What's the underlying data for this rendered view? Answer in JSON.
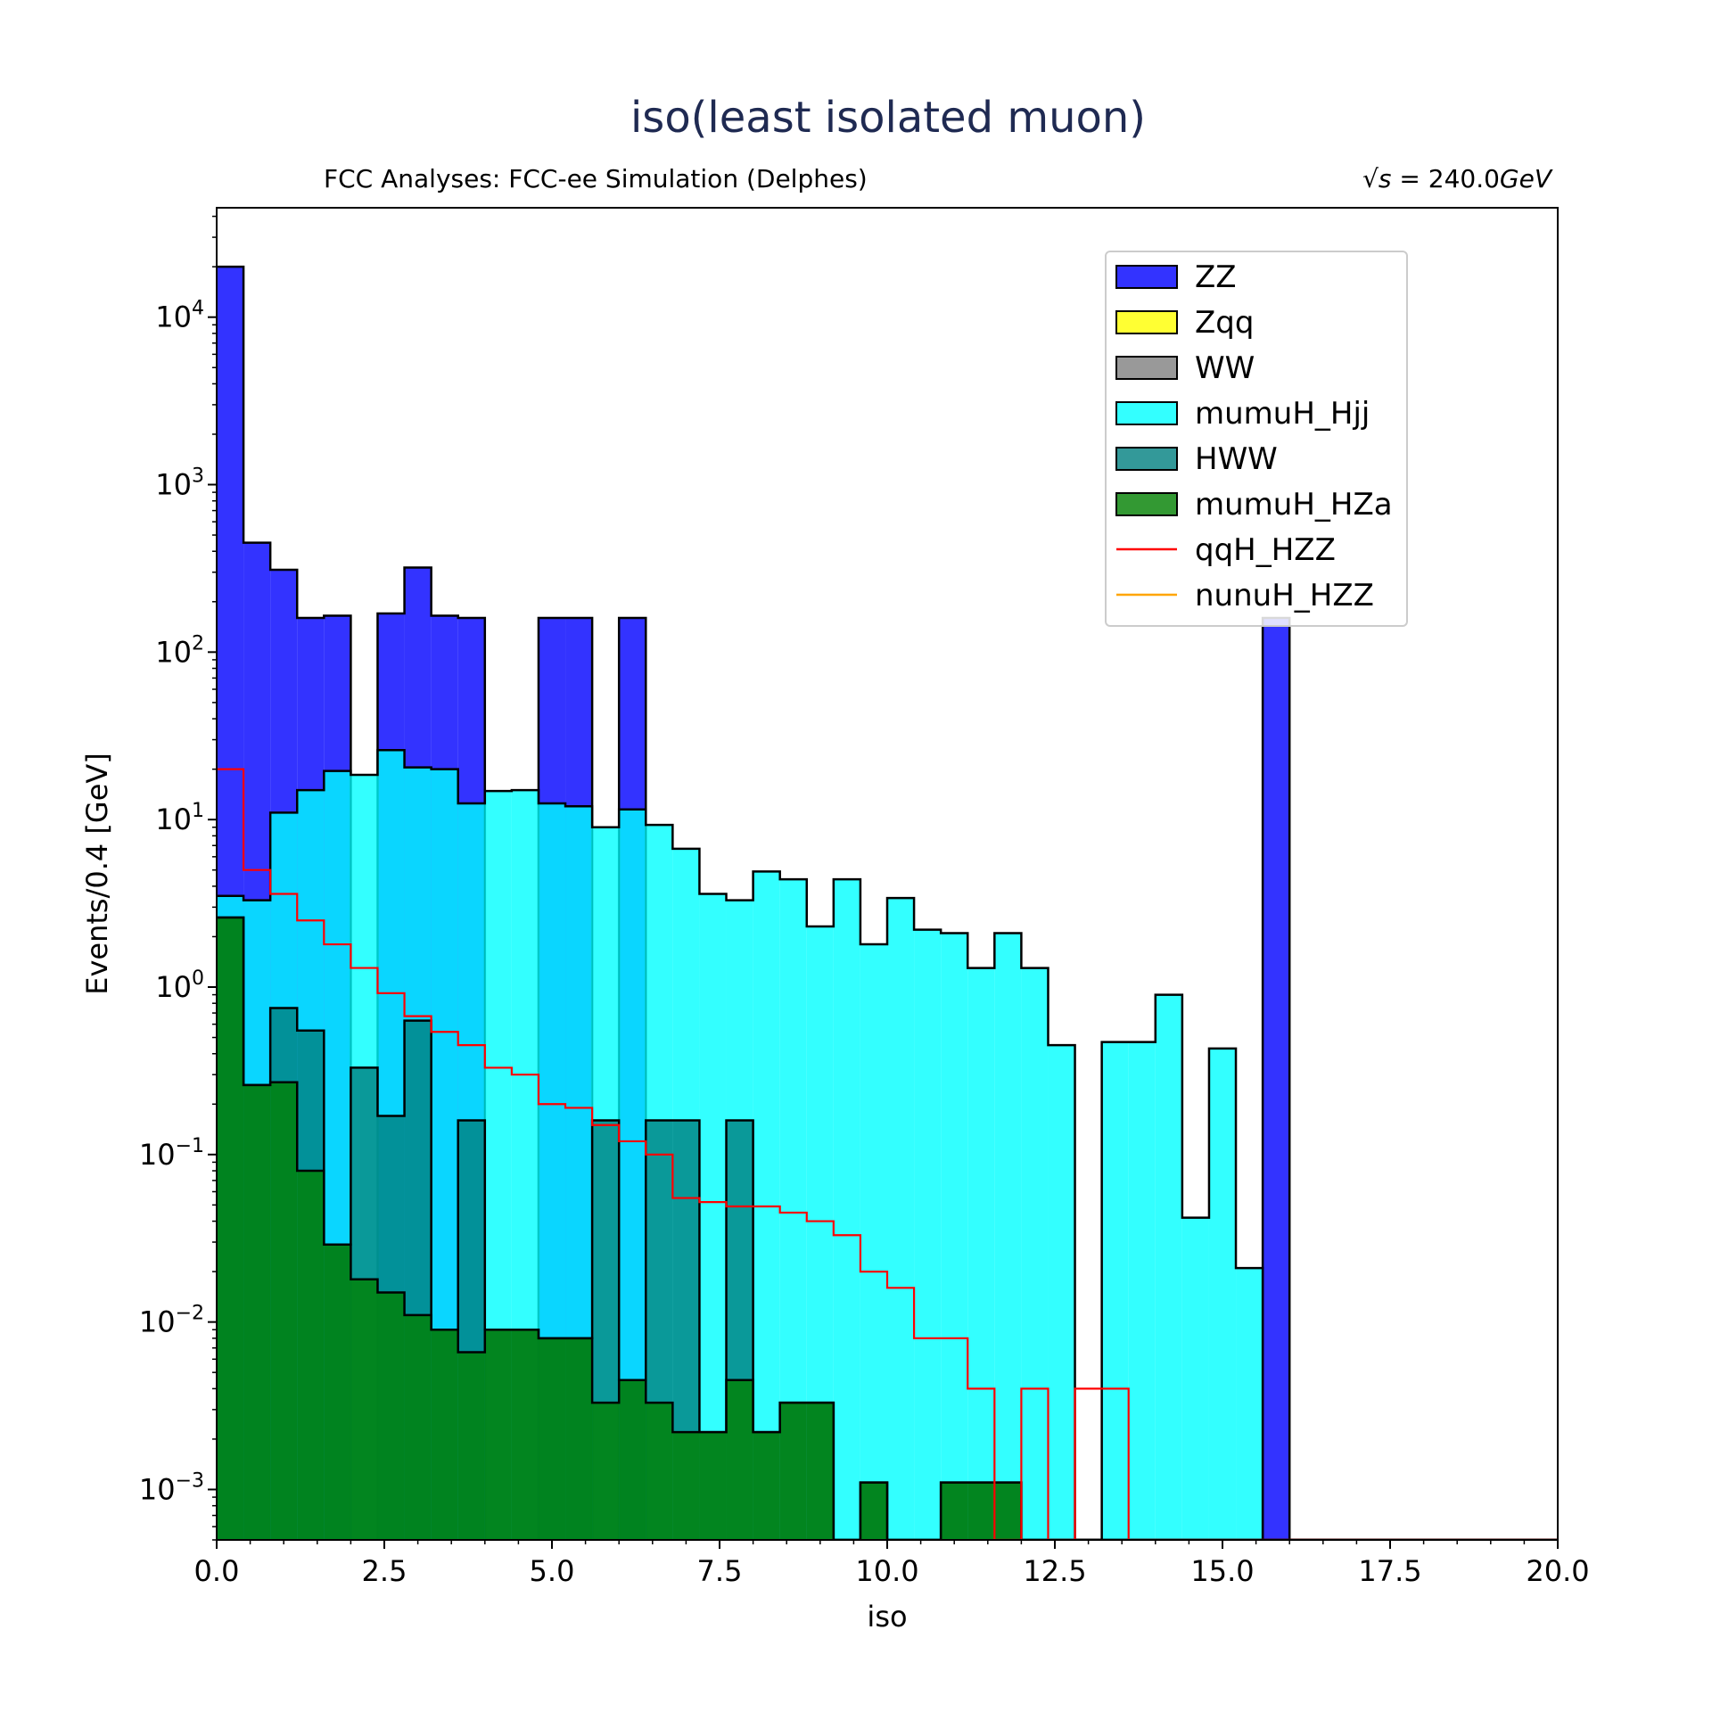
{
  "chart_data": {
    "type": "histogram-stacked",
    "title": "iso(least isolated muon)",
    "subtitle_left": "FCC Analyses: FCC-ee Simulation (Delphes)",
    "subtitle_right_prefix": "√s",
    "subtitle_right_value": " = 240.0",
    "subtitle_right_unit": "GeV",
    "xlabel": "iso",
    "ylabel": "Events/0.4 [GeV]",
    "xlim": [
      0,
      20
    ],
    "ylim": [
      0.0005,
      45000
    ],
    "yscale": "log",
    "bin_width": 0.4,
    "x_ticks": [
      0.0,
      2.5,
      5.0,
      7.5,
      10.0,
      12.5,
      15.0,
      17.5,
      20.0
    ],
    "x_tick_labels": [
      "0.0",
      "2.5",
      "5.0",
      "7.5",
      "10.0",
      "12.5",
      "15.0",
      "17.5",
      "20.0"
    ],
    "y_ticks": [
      {
        "base": "10",
        "exp": "−3",
        "value": 0.001
      },
      {
        "base": "10",
        "exp": "−2",
        "value": 0.01
      },
      {
        "base": "10",
        "exp": "−1",
        "value": 0.1
      },
      {
        "base": "10",
        "exp": "0",
        "value": 1
      },
      {
        "base": "10",
        "exp": "1",
        "value": 10
      },
      {
        "base": "10",
        "exp": "2",
        "value": 100
      },
      {
        "base": "10",
        "exp": "3",
        "value": 1000
      },
      {
        "base": "10",
        "exp": "4",
        "value": 10000
      }
    ],
    "legend_placement": "upper right",
    "series": [
      {
        "name": "ZZ",
        "kind": "stacked-fill",
        "color": "#0000ff",
        "cumulative_top": [
          20000,
          450,
          310,
          160,
          165,
          0,
          170,
          320,
          165,
          160,
          0,
          0,
          160,
          160,
          0,
          160,
          0,
          0,
          0,
          0,
          0,
          0,
          0,
          0,
          0,
          0,
          0,
          0,
          0,
          0,
          0,
          0,
          0,
          0,
          0,
          0,
          0,
          0,
          0,
          160,
          0,
          0,
          0,
          0,
          0,
          0,
          0,
          0,
          0,
          0
        ]
      },
      {
        "name": "Zqq",
        "kind": "stacked-fill",
        "color": "#ffff00",
        "cumulative_top": []
      },
      {
        "name": "WW",
        "kind": "stacked-fill",
        "color": "#808080",
        "cumulative_top": []
      },
      {
        "name": "mumuH_Hjj",
        "kind": "stacked-fill",
        "color": "#00ffff",
        "cumulative_top": [
          3.5,
          3.3,
          11,
          15,
          19.5,
          18.5,
          26,
          20.5,
          20,
          12.5,
          14.8,
          15,
          12.5,
          12,
          9,
          11.5,
          9.3,
          6.7,
          3.6,
          3.3,
          4.9,
          4.4,
          2.3,
          4.4,
          1.8,
          3.4,
          2.2,
          2.1,
          1.3,
          2.1,
          1.3,
          0.45,
          0,
          0.47,
          0.47,
          0.9,
          0.042,
          0.43,
          0.021,
          0,
          0,
          0,
          0,
          0,
          0,
          0,
          0,
          0,
          0,
          0
        ]
      },
      {
        "name": "HWW",
        "kind": "stacked-fill",
        "color": "#008080",
        "cumulative_top": [
          2.6,
          0.26,
          0.75,
          0.55,
          0.029,
          0.33,
          0.17,
          0.63,
          0.009,
          0.16,
          0.009,
          0.009,
          0.008,
          0.008,
          0.16,
          0.0045,
          0.16,
          0.16,
          0.0022,
          0.16,
          0.0022,
          0.0033,
          0.0033,
          0,
          0.0011,
          0,
          0,
          0.0011,
          0.0011,
          0.0011,
          0,
          0,
          0,
          0,
          0,
          0,
          0,
          0,
          0,
          0,
          0,
          0,
          0,
          0,
          0,
          0,
          0,
          0,
          0,
          0
        ]
      },
      {
        "name": "mumuH_HZa",
        "kind": "stacked-fill",
        "color": "#008000",
        "cumulative_top": [
          2.6,
          0.26,
          0.27,
          0.08,
          0.029,
          0.018,
          0.015,
          0.011,
          0.009,
          0.0066,
          0.009,
          0.009,
          0.008,
          0.008,
          0.0033,
          0.0045,
          0.0033,
          0.0022,
          0.0022,
          0.0045,
          0.0022,
          0.0033,
          0.0033,
          0,
          0.0011,
          0,
          0,
          0.0011,
          0.0011,
          0.0011,
          0,
          0,
          0,
          0,
          0,
          0,
          0,
          0,
          0,
          0,
          0,
          0,
          0,
          0,
          0,
          0,
          0,
          0,
          0,
          0
        ]
      },
      {
        "name": "qqH_HZZ",
        "kind": "step-line",
        "color": "#ff0000",
        "values": [
          20,
          5,
          3.6,
          2.5,
          1.8,
          1.3,
          0.92,
          0.67,
          0.54,
          0.45,
          0.33,
          0.3,
          0.2,
          0.19,
          0.15,
          0.12,
          0.1,
          0.055,
          0.052,
          0.049,
          0.049,
          0.045,
          0.04,
          0.033,
          0.02,
          0.016,
          0.008,
          0.008,
          0.004,
          0,
          0.004,
          0,
          0.004,
          0.004,
          0,
          0,
          0,
          0,
          0,
          0,
          0,
          0,
          0,
          0,
          0,
          0,
          0,
          0,
          0,
          0
        ]
      },
      {
        "name": "nunuH_HZZ",
        "kind": "step-line",
        "color": "#ffa500",
        "values": []
      }
    ]
  }
}
